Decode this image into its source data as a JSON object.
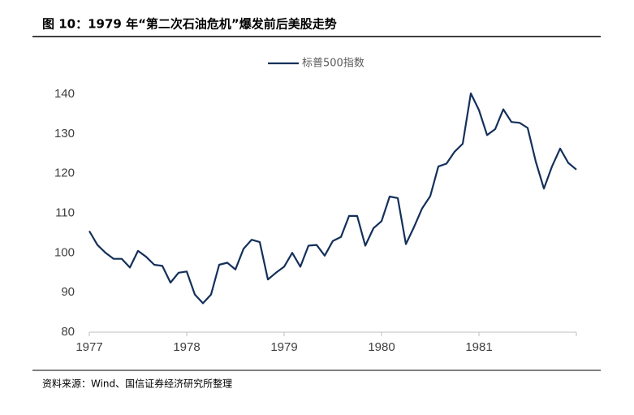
{
  "chart_data": {
    "type": "line",
    "title": "图 10：1979 年“第二次石油危机”爆发前后美股走势",
    "source": "资料来源：Wind、国信证券经济研究所整理",
    "x": [
      1977,
      1977.083,
      1977.167,
      1977.25,
      1977.333,
      1977.417,
      1977.5,
      1977.583,
      1977.667,
      1977.75,
      1977.833,
      1977.917,
      1978,
      1978.083,
      1978.167,
      1978.25,
      1978.333,
      1978.417,
      1978.5,
      1978.583,
      1978.667,
      1978.75,
      1978.833,
      1978.917,
      1979,
      1979.083,
      1979.167,
      1979.25,
      1979.333,
      1979.417,
      1979.5,
      1979.583,
      1979.667,
      1979.75,
      1979.833,
      1979.917,
      1980,
      1980.083,
      1980.167,
      1980.25,
      1980.333,
      1980.417,
      1980.5,
      1980.583,
      1980.667,
      1980.75,
      1980.833,
      1980.917,
      1981,
      1981.083,
      1981.167,
      1981.25,
      1981.333,
      1981.417,
      1981.5,
      1981.583,
      1981.667,
      1981.75,
      1981.833,
      1981.917,
      1982
    ],
    "series": [
      {
        "name": "标普500指数",
        "color": "#14305a",
        "values": [
          105.5,
          102,
          100,
          98.5,
          98.5,
          96.3,
          100.5,
          99,
          97,
          96.7,
          92.5,
          95,
          95.3,
          89.5,
          87.3,
          89.5,
          97,
          97.5,
          95.8,
          101,
          103.3,
          102.7,
          93.3,
          95,
          96.5,
          100,
          96.5,
          101.8,
          102,
          99.3,
          103,
          104,
          109.3,
          109.3,
          101.8,
          106.2,
          108,
          114.2,
          113.8,
          102.2,
          106.5,
          111.2,
          114.3,
          121.8,
          122.5,
          125.5,
          127.5,
          140.2,
          136,
          129.7,
          131.2,
          136.2,
          133,
          132.8,
          131.5,
          123,
          116.2,
          121.8,
          126.3,
          122.7,
          121
        ]
      }
    ],
    "xlim": [
      1977,
      1982
    ],
    "xticks": [
      1977,
      1978,
      1979,
      1980,
      1981
    ],
    "ylim": [
      80,
      140
    ],
    "yticks": [
      80,
      90,
      100,
      110,
      120,
      130,
      140
    ],
    "legend": "top",
    "grid": false
  }
}
